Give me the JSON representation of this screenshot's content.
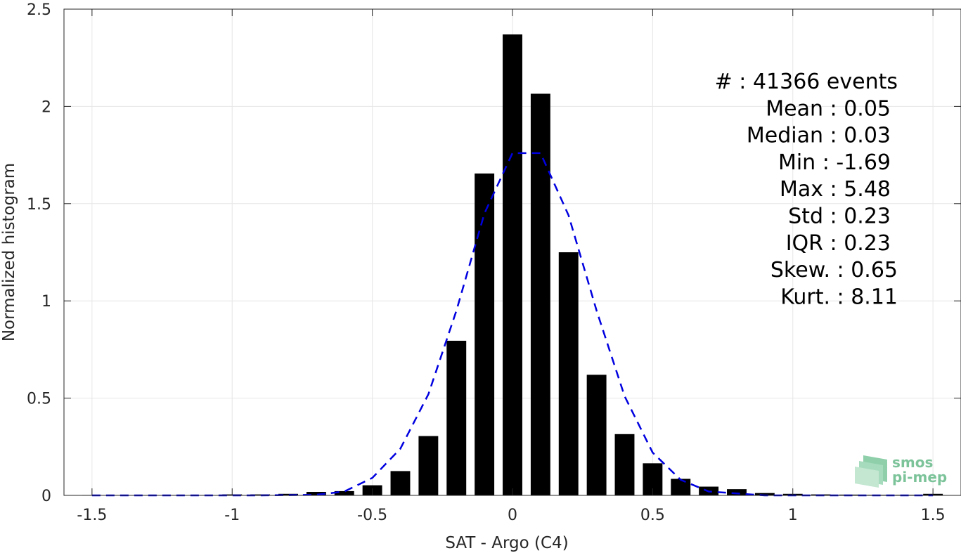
{
  "chart_data": {
    "type": "bar",
    "xlabel": "SAT - Argo (C4)",
    "ylabel": "Normalized histogram",
    "xlim": [
      -1.6,
      1.6
    ],
    "ylim": [
      0,
      2.5
    ],
    "xticks": [
      "-1.5",
      "-1",
      "-0.5",
      "0",
      "0.5",
      "1",
      "1.5"
    ],
    "xtick_values": [
      -1.5,
      -1,
      -0.5,
      0,
      0.5,
      1,
      1.5
    ],
    "yticks": [
      "0",
      "0.5",
      "1",
      "1.5",
      "2",
      "2.5"
    ],
    "ytick_values": [
      0,
      0.5,
      1,
      1.5,
      2,
      2.5
    ],
    "grid": true,
    "bar_color": "#000000",
    "fit_color": "#0000e0",
    "bars": {
      "x": [
        -1.5,
        -1.4,
        -1.3,
        -1.2,
        -1.1,
        -1.0,
        -0.9,
        -0.8,
        -0.7,
        -0.6,
        -0.5,
        -0.4,
        -0.3,
        -0.2,
        -0.1,
        0.0,
        0.1,
        0.2,
        0.3,
        0.4,
        0.5,
        0.6,
        0.7,
        0.8,
        0.9,
        1.0,
        1.1,
        1.2,
        1.3,
        1.4,
        1.5
      ],
      "values": [
        0.002,
        0.002,
        0.002,
        0.002,
        0.002,
        0.005,
        0.005,
        0.008,
        0.018,
        0.022,
        0.052,
        0.125,
        0.305,
        0.795,
        1.655,
        2.37,
        2.065,
        1.25,
        0.62,
        0.315,
        0.165,
        0.085,
        0.045,
        0.032,
        0.012,
        0.008,
        0.005,
        0.004,
        0.003,
        0.003,
        0.008
      ]
    },
    "fit_curve": {
      "x": [
        -1.5,
        -1.3,
        -1.1,
        -0.9,
        -0.7,
        -0.6,
        -0.5,
        -0.4,
        -0.3,
        -0.2,
        -0.1,
        0.0,
        0.1,
        0.2,
        0.3,
        0.4,
        0.5,
        0.6,
        0.7,
        0.9,
        1.1,
        1.3,
        1.5
      ],
      "values": [
        0.0,
        0.0,
        0.0,
        0.0,
        0.003,
        0.02,
        0.09,
        0.24,
        0.52,
        0.95,
        1.45,
        1.76,
        1.76,
        1.44,
        0.95,
        0.51,
        0.22,
        0.08,
        0.02,
        0.0,
        0.0,
        0.0,
        0.0
      ]
    },
    "stats": [
      "#  : 41366 events",
      "Mean : 0.05",
      "Median : 0.03",
      "Min : -1.69",
      "Max : 5.48",
      "Std : 0.23",
      "IQR : 0.23",
      "Skew. : 0.65",
      "Kurt. : 8.11"
    ]
  },
  "logo": {
    "line1": "smos",
    "line2": "pi-mep"
  }
}
